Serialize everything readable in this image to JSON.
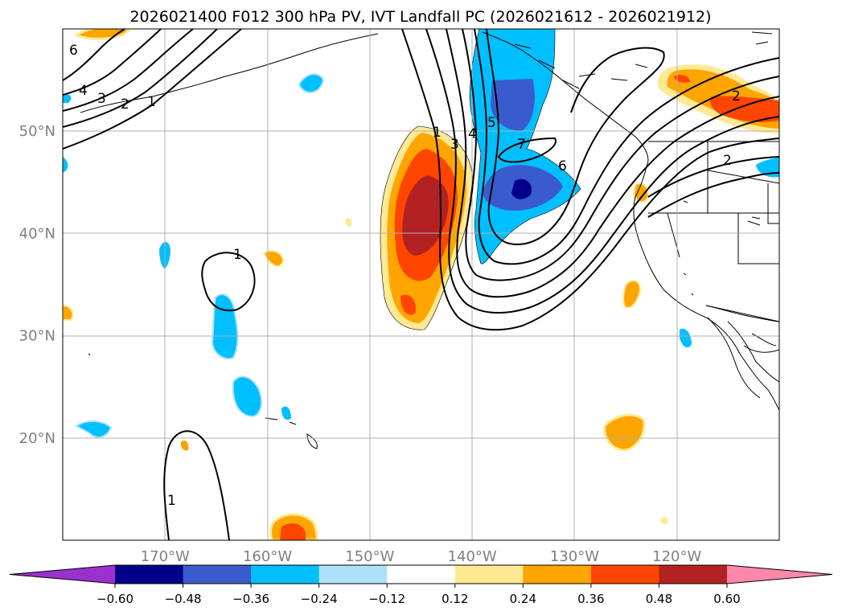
{
  "chart_data": {
    "type": "contour_map",
    "title": "2026021400 F012 300 hPa PV, IVT Landfall PC (2026021612 - 2026021912)",
    "projection": "PlateCarree",
    "lon_range": [
      -180,
      -110
    ],
    "lat_range": [
      10,
      60
    ],
    "lat_ticks": [
      20,
      30,
      40,
      50
    ],
    "lat_tick_labels": [
      "20°N",
      "30°N",
      "40°N",
      "50°N"
    ],
    "lon_ticks": [
      -170,
      -160,
      -150,
      -140,
      -130,
      -120
    ],
    "lon_tick_labels": [
      "170°W",
      "160°W",
      "150°W",
      "140°W",
      "130°W",
      "120°W"
    ],
    "fill_levels": [
      -0.6,
      -0.48,
      -0.36,
      -0.24,
      -0.12,
      0.12,
      0.24,
      0.36,
      0.48,
      0.6
    ],
    "colorbar_labels": [
      "−0.60",
      "−0.48",
      "−0.36",
      "−0.24",
      "−0.12",
      "0.12",
      "0.24",
      "0.36",
      "0.48",
      "0.60"
    ],
    "colorbar_colors": [
      "#9932CC",
      "#00008B",
      "#3A5BCD",
      "#00BFFF",
      "#ADE1FA",
      "#FFFFFF",
      "#FFE992",
      "#FFA500",
      "#FF4500",
      "#B22222",
      "#FF88AA"
    ],
    "pv_contour_labels": [
      "1",
      "2",
      "3",
      "4",
      "5",
      "6",
      "7"
    ],
    "contour_label_texts": [
      "6",
      "4",
      "3",
      "2",
      "1",
      "1",
      "3",
      "4",
      "5",
      "7",
      "6",
      "2",
      "2",
      "1",
      "1"
    ]
  }
}
